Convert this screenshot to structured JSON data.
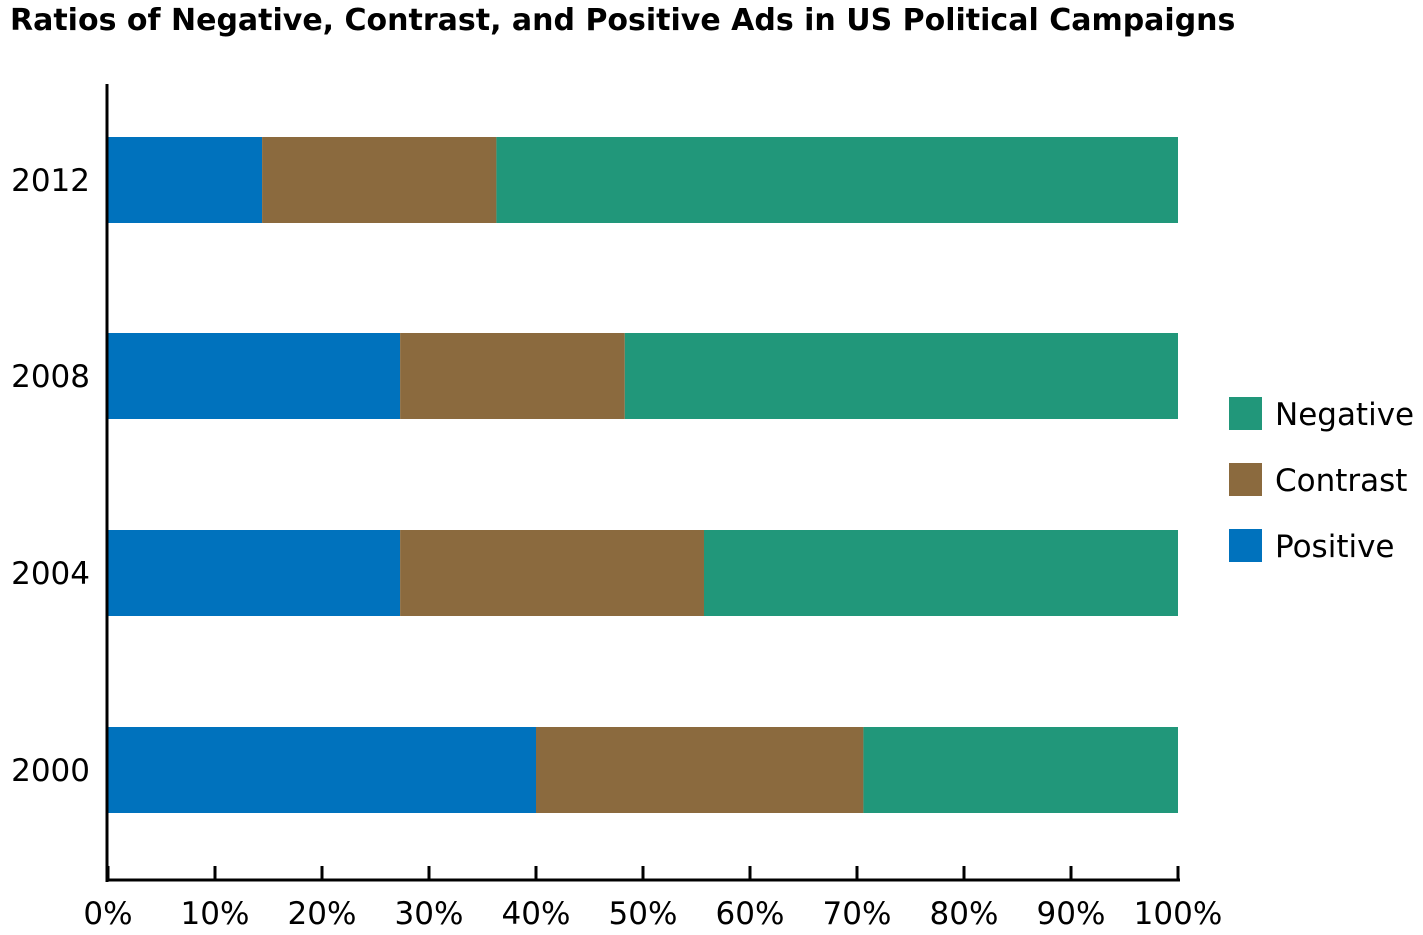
{
  "chart_data": {
    "type": "bar",
    "orientation": "horizontal",
    "stacked": true,
    "title": "Ratios of Negative, Contrast, and Positive Ads in US Political Campaigns",
    "xlabel": "",
    "ylabel": "",
    "categories": [
      "2012",
      "2008",
      "2004",
      "2000"
    ],
    "xlim": [
      0,
      100
    ],
    "x_ticks": [
      "0%",
      "10%",
      "20%",
      "30%",
      "40%",
      "50%",
      "60%",
      "70%",
      "80%",
      "90%",
      "100%"
    ],
    "grid": false,
    "legend_position": "right",
    "series": [
      {
        "name": "Positive",
        "color": "#0072bd",
        "values": [
          14.4,
          27.3,
          27.3,
          40.0
        ]
      },
      {
        "name": "Contrast",
        "color": "#8b6a3e",
        "values": [
          21.9,
          21.0,
          28.4,
          30.6
        ]
      },
      {
        "name": "Negative",
        "color": "#21977a",
        "values": [
          63.7,
          51.7,
          44.3,
          29.4
        ]
      }
    ],
    "legend_order": [
      "Negative",
      "Contrast",
      "Positive"
    ]
  }
}
